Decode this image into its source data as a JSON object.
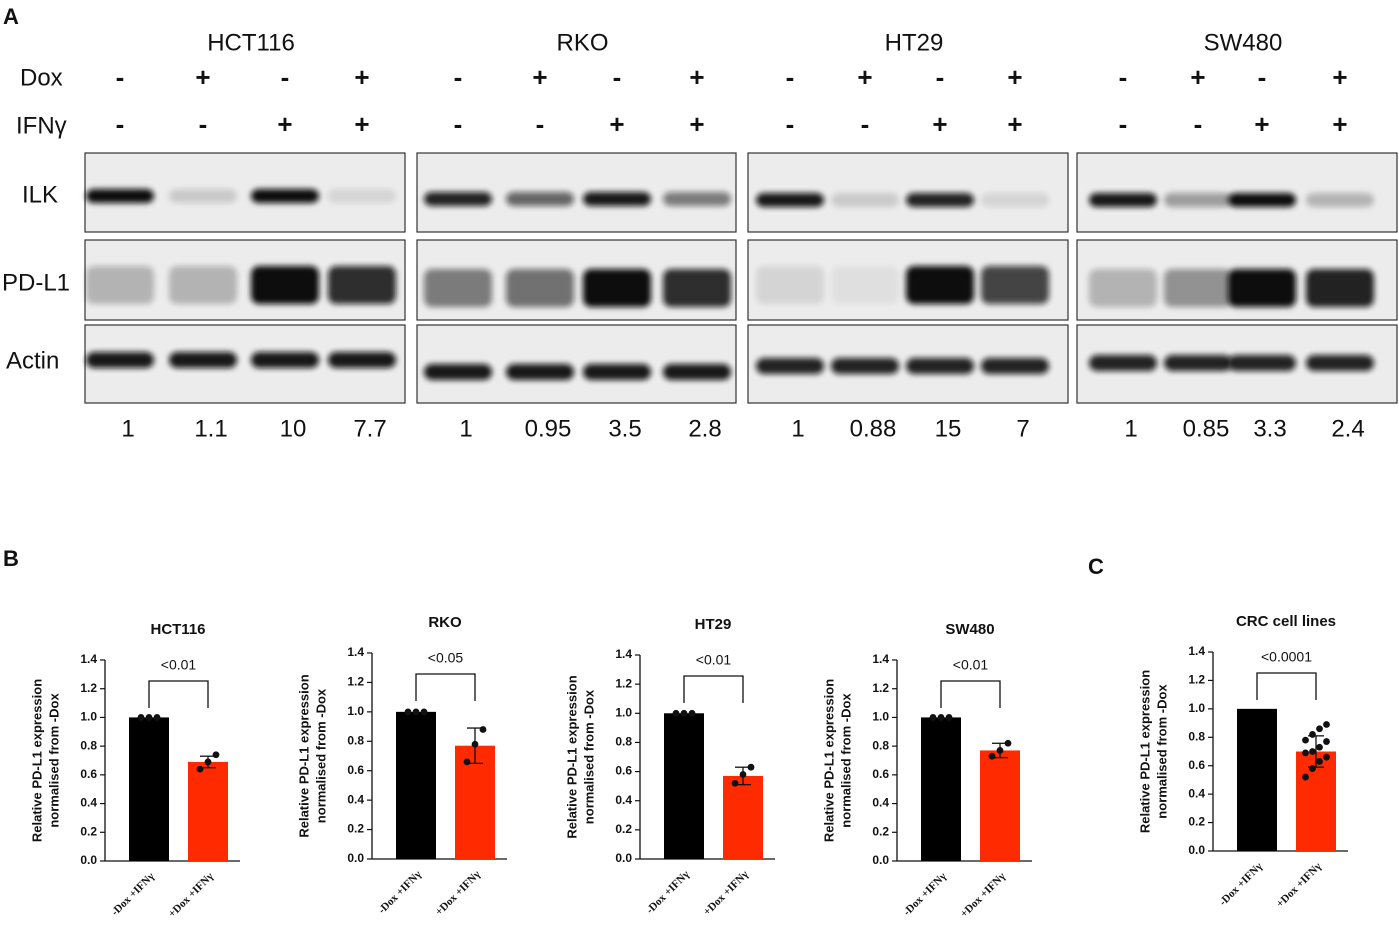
{
  "blot": {
    "panel_label": "A",
    "conditions": [
      "Dox",
      "IFNγ"
    ],
    "bands": [
      "ILK",
      "PD-L1",
      "Actin"
    ],
    "groups": [
      {
        "name": "HCT116",
        "dox": [
          "-",
          "+",
          "-",
          "+"
        ],
        "ifng": [
          "-",
          "-",
          "+",
          "+"
        ],
        "quant": [
          1,
          1.1,
          10,
          7.7
        ]
      },
      {
        "name": "RKO",
        "dox": [
          "-",
          "+",
          "-",
          "+"
        ],
        "ifng": [
          "-",
          "-",
          "+",
          "+"
        ],
        "quant": [
          1,
          0.95,
          3.5,
          2.8
        ]
      },
      {
        "name": "HT29",
        "dox": [
          "-",
          "+",
          "-",
          "+"
        ],
        "ifng": [
          "-",
          "-",
          "+",
          "+"
        ],
        "quant": [
          1,
          0.88,
          15,
          7
        ]
      },
      {
        "name": "SW480",
        "dox": [
          "-",
          "+",
          "-",
          "+"
        ],
        "ifng": [
          "-",
          "-",
          "+",
          "+"
        ],
        "quant": [
          1,
          0.85,
          3.3,
          2.4
        ]
      }
    ]
  },
  "panel_labels": {
    "b": "B",
    "c": "C"
  },
  "chart_data": [
    {
      "type": "bar",
      "title": "HCT116",
      "ylabel": [
        "Relative PD-L1 expression",
        "normalised from -Dox"
      ],
      "categories": [
        "-Dox +IFNγ",
        "+Dox +IFNγ"
      ],
      "values": [
        1.0,
        0.69
      ],
      "errors": [
        null,
        0.04
      ],
      "points": [
        [
          1,
          1,
          1
        ],
        [
          0.64,
          0.69,
          0.74
        ]
      ],
      "colors": [
        "#000000",
        "#ff2a00"
      ],
      "annotation": "<0.01",
      "ylim": [
        0,
        1.4
      ],
      "yticks": [
        {
          "value": 0,
          "label": "0.0"
        },
        0.2,
        0.4,
        0.6,
        0.8,
        {
          "value": 1,
          "label": "1.0"
        },
        1.2,
        1.4
      ]
    },
    {
      "type": "bar",
      "title": "RKO",
      "ylabel": [
        "Relative PD-L1 expression",
        "normalised from -Dox"
      ],
      "categories": [
        "-Dox +IFNγ",
        "+Dox +IFNγ"
      ],
      "values": [
        1.0,
        0.77
      ],
      "errors": [
        null,
        0.12
      ],
      "points": [
        [
          1,
          1,
          1
        ],
        [
          0.66,
          0.78,
          0.88
        ]
      ],
      "colors": [
        "#000000",
        "#ff2a00"
      ],
      "annotation": "<0.05",
      "ylim": [
        0,
        1.4
      ],
      "yticks": [
        {
          "value": 0,
          "label": "0.0"
        },
        0.2,
        0.4,
        0.6,
        0.8,
        {
          "value": 1,
          "label": "1.0"
        },
        1.2,
        1.4
      ]
    },
    {
      "type": "bar",
      "title": "HT29",
      "ylabel": [
        "Relative PD-L1 expression",
        "normalised from -Dox"
      ],
      "categories": [
        "-Dox +IFNγ",
        "+Dox +IFNγ"
      ],
      "values": [
        1.0,
        0.57
      ],
      "errors": [
        null,
        0.06
      ],
      "points": [
        [
          1,
          1,
          1
        ],
        [
          0.52,
          0.58,
          0.63
        ]
      ],
      "colors": [
        "#000000",
        "#ff2a00"
      ],
      "annotation": "<0.01",
      "ylim": [
        0,
        1.4
      ],
      "yticks": [
        {
          "value": 0,
          "label": "0.0"
        },
        0.2,
        0.4,
        0.6,
        0.8,
        {
          "value": 1,
          "label": "1.0"
        },
        1.2,
        1.4
      ]
    },
    {
      "type": "bar",
      "title": "SW480",
      "ylabel": [
        "Relative PD-L1 expression",
        "normalised from -Dox"
      ],
      "categories": [
        "-Dox +IFNγ",
        "+Dox +IFNγ"
      ],
      "values": [
        1.0,
        0.77
      ],
      "errors": [
        null,
        0.05
      ],
      "points": [
        [
          1,
          1,
          1
        ],
        [
          0.73,
          0.77,
          0.82
        ]
      ],
      "colors": [
        "#000000",
        "#ff2a00"
      ],
      "annotation": "<0.01",
      "ylim": [
        0,
        1.4
      ],
      "yticks": [
        {
          "value": 0,
          "label": "0.0"
        },
        0.2,
        0.4,
        0.6,
        0.8,
        {
          "value": 1,
          "label": "1.0"
        },
        1.2,
        1.4
      ]
    },
    {
      "type": "bar",
      "title": "CRC cell lines",
      "ylabel": [
        "Relative PD-L1 expression",
        "normalised from -Dox"
      ],
      "categories": [
        "-Dox +IFNγ",
        "+Dox +IFNγ"
      ],
      "values": [
        1.0,
        0.7
      ],
      "errors": [
        null,
        0.11
      ],
      "points": [
        null,
        [
          0.52,
          0.58,
          0.63,
          0.66,
          0.69,
          0.7,
          0.73,
          0.77,
          0.78,
          0.82,
          0.86,
          0.89
        ]
      ],
      "colors": [
        "#000000",
        "#ff2a00"
      ],
      "annotation": "<0.0001",
      "ylim": [
        0,
        1.4
      ],
      "yticks": [
        {
          "value": 0,
          "label": "0.0"
        },
        0.2,
        0.4,
        0.6,
        0.8,
        {
          "value": 1,
          "label": "1.0"
        },
        1.2,
        1.4
      ]
    }
  ]
}
